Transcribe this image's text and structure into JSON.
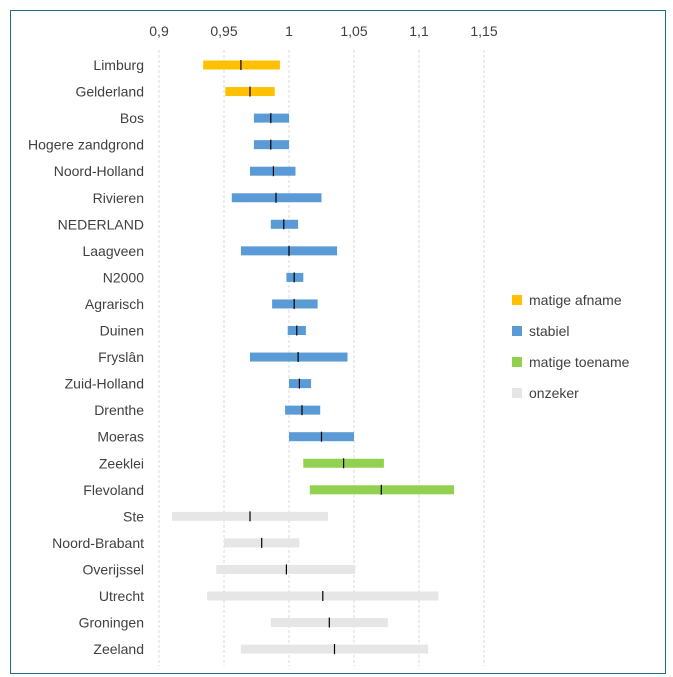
{
  "chart_data": {
    "type": "range",
    "title": "",
    "xlabel": "",
    "ylabel": "",
    "xlim": [
      0.9,
      1.15
    ],
    "xticks": [
      0.9,
      0.95,
      1,
      1.05,
      1.1,
      1.15
    ],
    "xtick_labels": [
      "0,9",
      "0,95",
      "1",
      "1,05",
      "1,1",
      "1,15"
    ],
    "grid": true,
    "legend_position": "right",
    "categories": [
      {
        "key": "matige_afname",
        "label": "matige afname",
        "color": "#FFC000"
      },
      {
        "key": "stabiel",
        "label": "stabiel",
        "color": "#5B9BD5"
      },
      {
        "key": "matige_toename",
        "label": "matige toename",
        "color": "#92D050"
      },
      {
        "key": "onzeker",
        "label": "onzeker",
        "color": "#E7E6E6"
      }
    ],
    "rows": [
      {
        "label": "Limburg",
        "low": 0.934,
        "mid": 0.963,
        "high": 0.993,
        "category": "matige_afname"
      },
      {
        "label": "Gelderland",
        "low": 0.951,
        "mid": 0.97,
        "high": 0.989,
        "category": "matige_afname"
      },
      {
        "label": "Bos",
        "low": 0.973,
        "mid": 0.986,
        "high": 1.0,
        "category": "stabiel"
      },
      {
        "label": "Hogere zandgrond",
        "low": 0.973,
        "mid": 0.986,
        "high": 1.0,
        "category": "stabiel"
      },
      {
        "label": "Noord-Holland",
        "low": 0.97,
        "mid": 0.988,
        "high": 1.005,
        "category": "stabiel"
      },
      {
        "label": "Rivieren",
        "low": 0.956,
        "mid": 0.99,
        "high": 1.025,
        "category": "stabiel"
      },
      {
        "label": "NEDERLAND",
        "low": 0.986,
        "mid": 0.996,
        "high": 1.007,
        "category": "stabiel"
      },
      {
        "label": "Laagveen",
        "low": 0.963,
        "mid": 1.0,
        "high": 1.037,
        "category": "stabiel"
      },
      {
        "label": "N2000",
        "low": 0.998,
        "mid": 1.004,
        "high": 1.011,
        "category": "stabiel"
      },
      {
        "label": "Agrarisch",
        "low": 0.987,
        "mid": 1.004,
        "high": 1.022,
        "category": "stabiel"
      },
      {
        "label": "Duinen",
        "low": 0.999,
        "mid": 1.006,
        "high": 1.013,
        "category": "stabiel"
      },
      {
        "label": "Fryslân",
        "low": 0.97,
        "mid": 1.007,
        "high": 1.045,
        "category": "stabiel"
      },
      {
        "label": "Zuid-Holland",
        "low": 1.0,
        "mid": 1.008,
        "high": 1.017,
        "category": "stabiel"
      },
      {
        "label": "Drenthe",
        "low": 0.997,
        "mid": 1.01,
        "high": 1.024,
        "category": "stabiel"
      },
      {
        "label": "Moeras",
        "low": 1.0,
        "mid": 1.025,
        "high": 1.05,
        "category": "stabiel"
      },
      {
        "label": "Zeeklei",
        "low": 1.011,
        "mid": 1.042,
        "high": 1.073,
        "category": "matige_toename"
      },
      {
        "label": "Flevoland",
        "low": 1.016,
        "mid": 1.071,
        "high": 1.127,
        "category": "matige_toename"
      },
      {
        "label": "Ste",
        "low": 0.91,
        "mid": 0.97,
        "high": 1.03,
        "category": "onzeker"
      },
      {
        "label": "Noord-Brabant",
        "low": 0.95,
        "mid": 0.979,
        "high": 1.008,
        "category": "onzeker"
      },
      {
        "label": "Overijssel",
        "low": 0.944,
        "mid": 0.998,
        "high": 1.051,
        "category": "onzeker"
      },
      {
        "label": "Utrecht",
        "low": 0.937,
        "mid": 1.026,
        "high": 1.115,
        "category": "onzeker"
      },
      {
        "label": "Groningen",
        "low": 0.986,
        "mid": 1.031,
        "high": 1.076,
        "category": "onzeker"
      },
      {
        "label": "Zeeland",
        "low": 0.963,
        "mid": 1.035,
        "high": 1.107,
        "category": "onzeker"
      }
    ]
  }
}
